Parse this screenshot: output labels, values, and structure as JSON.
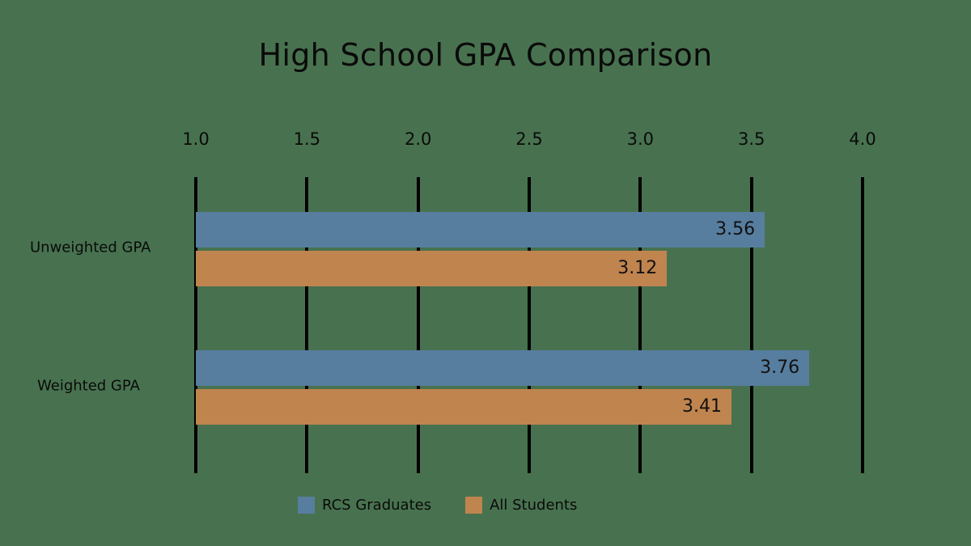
{
  "chart_data": {
    "type": "bar",
    "orientation": "horizontal",
    "title": "High School GPA Comparison",
    "xlabel": "",
    "ylabel": "",
    "xlim": [
      1.0,
      4.0
    ],
    "x_ticks": [
      "1.0",
      "1.5",
      "2.0",
      "2.5",
      "3.0",
      "3.5",
      "4.0"
    ],
    "grid": true,
    "legend_position": "bottom",
    "categories": [
      "Unweighted GPA",
      "Weighted GPA"
    ],
    "series": [
      {
        "name": "RCS Graduates",
        "color": "#577e9f",
        "values": [
          3.56,
          3.76
        ],
        "labels": [
          "3.56",
          "3.76"
        ]
      },
      {
        "name": "All Students",
        "color": "#c0844f",
        "values": [
          3.12,
          3.41
        ],
        "labels": [
          "3.12",
          "3.41"
        ]
      }
    ]
  },
  "colors": {
    "background": "#48724f",
    "gridline": "#000000",
    "text": "#0a0a0a"
  }
}
